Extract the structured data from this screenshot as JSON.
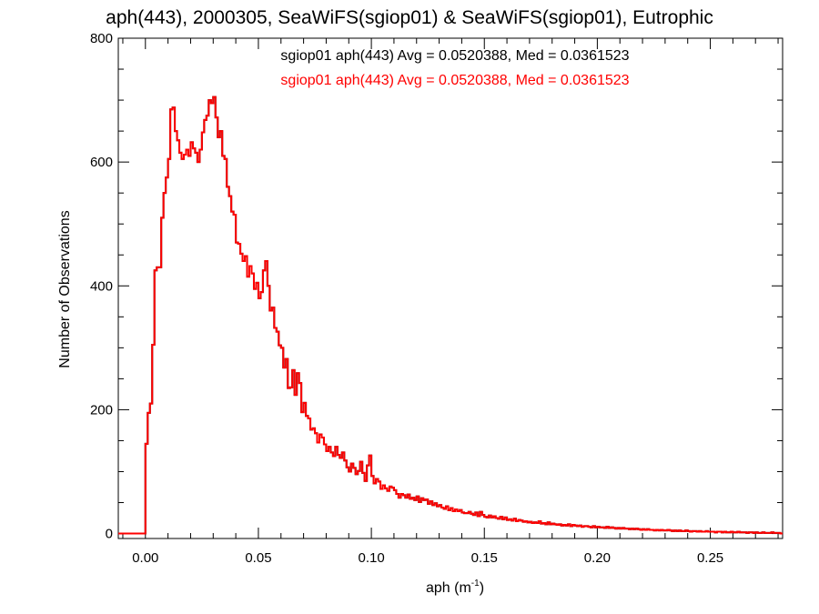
{
  "chart_data": {
    "type": "line",
    "title": "aph(443), 2000305, SeaWiFS(sgiop01) & SeaWiFS(sgiop01), Eutrophic",
    "xlabel_base": "aph (m",
    "xlabel_exp": "-1",
    "xlabel_close": ")",
    "ylabel": "Number of Observations",
    "xlim": [
      -0.012,
      0.282
    ],
    "ylim": [
      -8,
      800
    ],
    "x_ticks": [
      0.0,
      0.05,
      0.1,
      0.15,
      0.2,
      0.25
    ],
    "x_tick_labels": [
      "0.00",
      "0.05",
      "0.10",
      "0.15",
      "0.20",
      "0.25"
    ],
    "y_ticks": [
      0,
      200,
      400,
      600,
      800
    ],
    "y_tick_labels": [
      "0",
      "200",
      "400",
      "600",
      "800"
    ],
    "grid": false,
    "legend_placement": "top-center",
    "series": [
      {
        "name": "sgiop01 aph(443) Avg = 0.0520388, Med = 0.0361523",
        "color": "#000000",
        "step": 0.001,
        "x_start": 0.0,
        "values": [
          145,
          195,
          210,
          305,
          425,
          430,
          430,
          510,
          550,
          575,
          605,
          685,
          688,
          650,
          635,
          615,
          605,
          612,
          620,
          610,
          632,
          622,
          615,
          600,
          620,
          648,
          668,
          675,
          700,
          695,
          705,
          672,
          640,
          650,
          610,
          605,
          560,
          545,
          520,
          515,
          470,
          468,
          452,
          440,
          448,
          415,
          432,
          420,
          395,
          405,
          380,
          390,
          425,
          440,
          400,
          360,
          365,
          332,
          326,
          304,
          300,
          268,
          282,
          235,
          236,
          264,
          224,
          259,
          243,
          196,
          211,
          190,
          186,
          168,
          170,
          162,
          147,
          160,
          155,
          144,
          133,
          140,
          131,
          125,
          140,
          127,
          122,
          131,
          118,
          107,
          100,
          113,
          106,
          96,
          101,
          116,
          98,
          85,
          110,
          126,
          93,
          81,
          88,
          84,
          72,
          78,
          73,
          69,
          76,
          74,
          70,
          64,
          58,
          64,
          62,
          58,
          63,
          56,
          58,
          54,
          60,
          51,
          57,
          54,
          55,
          48,
          52,
          46,
          49,
          44,
          46,
          42,
          40,
          44,
          38,
          41,
          36,
          39,
          36,
          38,
          34,
          33,
          33,
          35,
          32,
          30,
          34,
          28,
          35,
          30,
          27,
          26,
          29,
          26,
          28,
          25,
          24,
          27,
          23,
          26,
          22,
          23,
          21,
          24,
          20,
          22,
          21,
          19,
          20,
          18,
          19,
          17,
          18,
          17,
          20,
          16,
          17,
          15,
          18,
          15,
          16,
          15,
          14,
          15,
          13,
          14,
          13,
          15,
          12,
          14,
          13,
          12,
          13,
          11,
          12,
          12,
          11,
          10,
          12,
          10,
          11,
          10,
          10,
          9,
          11,
          9,
          10,
          9,
          8,
          9,
          8,
          9,
          8,
          8,
          7,
          8,
          7,
          8,
          7,
          6,
          7,
          6,
          7,
          6,
          6,
          5,
          6,
          5,
          6,
          5,
          5,
          6,
          5,
          4,
          5,
          4,
          5,
          4,
          4,
          5,
          4,
          3,
          4,
          4,
          3,
          4,
          3,
          3,
          4,
          3,
          3,
          3,
          2,
          3,
          3,
          2,
          3,
          2,
          2,
          3,
          2,
          2,
          3,
          2,
          2,
          2,
          1,
          2,
          2,
          1,
          2,
          1,
          1,
          2,
          1,
          1,
          1,
          2,
          1,
          1,
          1,
          0
        ]
      },
      {
        "name": "sgiop01 aph(443) Avg = 0.0520388, Med = 0.0361523",
        "color": "#ff0000",
        "step": 0.001,
        "x_start": 0.0,
        "values": [
          145,
          195,
          210,
          305,
          425,
          430,
          430,
          510,
          550,
          575,
          605,
          685,
          688,
          650,
          635,
          615,
          605,
          612,
          620,
          610,
          632,
          622,
          615,
          600,
          620,
          648,
          668,
          675,
          700,
          695,
          705,
          672,
          640,
          650,
          610,
          605,
          560,
          545,
          520,
          515,
          470,
          468,
          452,
          440,
          448,
          415,
          432,
          420,
          395,
          405,
          380,
          390,
          425,
          440,
          400,
          360,
          365,
          332,
          326,
          304,
          300,
          268,
          282,
          235,
          236,
          264,
          224,
          259,
          243,
          196,
          211,
          190,
          186,
          168,
          170,
          162,
          147,
          160,
          155,
          144,
          133,
          140,
          131,
          125,
          140,
          127,
          122,
          131,
          118,
          107,
          100,
          113,
          106,
          96,
          101,
          116,
          98,
          85,
          110,
          126,
          93,
          81,
          88,
          84,
          72,
          78,
          73,
          69,
          76,
          74,
          70,
          64,
          58,
          64,
          62,
          58,
          63,
          56,
          58,
          54,
          60,
          51,
          57,
          54,
          55,
          48,
          52,
          46,
          49,
          44,
          46,
          42,
          40,
          44,
          38,
          41,
          36,
          39,
          36,
          38,
          34,
          33,
          33,
          35,
          32,
          30,
          34,
          28,
          35,
          30,
          27,
          26,
          29,
          26,
          28,
          25,
          24,
          27,
          23,
          26,
          22,
          23,
          21,
          24,
          20,
          22,
          21,
          19,
          20,
          18,
          19,
          17,
          18,
          17,
          20,
          16,
          17,
          15,
          18,
          15,
          16,
          15,
          14,
          15,
          13,
          14,
          13,
          15,
          12,
          14,
          13,
          12,
          13,
          11,
          12,
          12,
          11,
          10,
          12,
          10,
          11,
          10,
          10,
          9,
          11,
          9,
          10,
          9,
          8,
          9,
          8,
          9,
          8,
          8,
          7,
          8,
          7,
          8,
          7,
          6,
          7,
          6,
          7,
          6,
          6,
          5,
          6,
          5,
          6,
          5,
          5,
          6,
          5,
          4,
          5,
          4,
          5,
          4,
          4,
          5,
          4,
          3,
          4,
          4,
          3,
          4,
          3,
          3,
          4,
          3,
          3,
          3,
          2,
          3,
          3,
          2,
          3,
          2,
          2,
          3,
          2,
          2,
          3,
          2,
          2,
          2,
          1,
          2,
          2,
          1,
          2,
          1,
          1,
          2,
          1,
          1,
          1,
          2,
          1,
          1,
          1,
          0
        ]
      }
    ]
  }
}
